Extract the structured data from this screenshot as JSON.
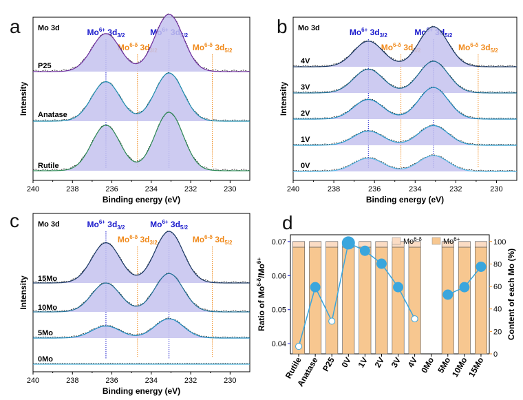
{
  "chart_data": [
    {
      "panel": "a",
      "type": "line",
      "title": "Mo 3d",
      "xlabel": "Binding energy (eV)",
      "ylabel": "Intensity",
      "xlim": [
        240,
        229
      ],
      "xticks": [
        240,
        238,
        236,
        234,
        232,
        230
      ],
      "peak_labels": [
        {
          "text": "Mo6+ 3d3/2",
          "base": "Mo",
          "sup": "6+",
          "mid": " 3d",
          "sub": "3/2",
          "x": 236.3,
          "color": "#1a1acc"
        },
        {
          "text": "Mo6+ 3d5/2",
          "base": "Mo",
          "sup": "6+",
          "mid": " 3d",
          "sub": "5/2",
          "x": 233.1,
          "color": "#1a1acc"
        },
        {
          "text": "Mo6-δ 3d3/2",
          "base": "Mo",
          "sup": "6-δ",
          "mid": " 3d",
          "sub": "3/2",
          "x": 234.7,
          "color": "#f08a1c"
        },
        {
          "text": "Mo6-δ 3d5/2",
          "base": "Mo",
          "sup": "6-δ",
          "mid": " 3d",
          "sub": "5/2",
          "x": 230.9,
          "color": "#f08a1c"
        }
      ],
      "series": [
        {
          "name": "P25",
          "h1": 0.65,
          "h2": 0.98,
          "color": "#7030a0"
        },
        {
          "name": "Anatase",
          "h1": 0.82,
          "h2": 1.0,
          "color": "#1e8fb0"
        },
        {
          "name": "Rutile",
          "h1": 0.78,
          "h2": 1.0,
          "color": "#2e8b57"
        }
      ]
    },
    {
      "panel": "b",
      "type": "line",
      "title": "Mo 3d",
      "xlabel": "Binding energy (eV)",
      "ylabel": "Intensity",
      "xlim": [
        240,
        229
      ],
      "xticks": [
        240,
        238,
        236,
        234,
        232,
        230
      ],
      "peak_labels": [
        {
          "text": "Mo6+ 3d3/2",
          "base": "Mo",
          "sup": "6+",
          "mid": " 3d",
          "sub": "3/2",
          "x": 236.3,
          "color": "#1a1acc"
        },
        {
          "text": "Mo6+ 3d5/2",
          "base": "Mo",
          "sup": "6+",
          "mid": " 3d",
          "sub": "5/2",
          "x": 233.1,
          "color": "#1a1acc"
        },
        {
          "text": "Mo6-δ 3d3/2",
          "base": "Mo",
          "sup": "6-δ",
          "mid": " 3d",
          "sub": "3/2",
          "x": 234.7,
          "color": "#f08a1c"
        },
        {
          "text": "Mo6-δ 3d5/2",
          "base": "Mo",
          "sup": "6-δ",
          "mid": " 3d",
          "sub": "5/2",
          "x": 230.9,
          "color": "#f08a1c"
        }
      ],
      "series": [
        {
          "name": "4V",
          "h1": 0.62,
          "h2": 0.97,
          "color": "#1c3a66"
        },
        {
          "name": "3V",
          "h1": 0.75,
          "h2": 1.0,
          "color": "#1e6f95"
        },
        {
          "name": "2V",
          "h1": 0.62,
          "h2": 1.0,
          "color": "#1c8cc0"
        },
        {
          "name": "1V",
          "h1": 0.45,
          "h2": 0.62,
          "color": "#2c9fd0"
        },
        {
          "name": "0V",
          "h1": 0.42,
          "h2": 0.5,
          "color": "#55b8e6"
        }
      ]
    },
    {
      "panel": "c",
      "type": "line",
      "title": "Mo 3d",
      "xlabel": "Binding energy (eV)",
      "ylabel": "Intensity",
      "xlim": [
        240,
        229
      ],
      "xticks": [
        240,
        238,
        236,
        234,
        232,
        230
      ],
      "peak_labels": [
        {
          "text": "Mo6+ 3d3/2",
          "base": "Mo",
          "sup": "6+",
          "mid": " 3d",
          "sub": "3/2",
          "x": 236.3,
          "color": "#1a1acc"
        },
        {
          "text": "Mo6+ 3d5/2",
          "base": "Mo",
          "sup": "6+",
          "mid": " 3d",
          "sub": "5/2",
          "x": 233.1,
          "color": "#1a1acc"
        },
        {
          "text": "Mo6-δ 3d3/2",
          "base": "Mo",
          "sup": "6-δ",
          "mid": " 3d",
          "sub": "3/2",
          "x": 234.7,
          "color": "#f08a1c"
        },
        {
          "text": "Mo6-δ 3d5/2",
          "base": "Mo",
          "sup": "6-δ",
          "mid": " 3d",
          "sub": "5/2",
          "x": 230.9,
          "color": "#f08a1c"
        }
      ],
      "series": [
        {
          "name": "15Mo",
          "h1": 0.78,
          "h2": 1.0,
          "color": "#1c3a66"
        },
        {
          "name": "10Mo",
          "h1": 0.7,
          "h2": 0.93,
          "color": "#1e6f95"
        },
        {
          "name": "5Mo",
          "h1": 0.35,
          "h2": 0.56,
          "color": "#1c8cc0"
        },
        {
          "name": "0Mo",
          "h1": 0.0,
          "h2": 0.0,
          "color": "#4fb3d9"
        }
      ]
    },
    {
      "panel": "d",
      "type": "bar",
      "categories": [
        "Rutile",
        "Anatase",
        "P25",
        "0V",
        "1V",
        "2V",
        "3V",
        "4V",
        "0Mo",
        "5Mo",
        "10Mo",
        "15Mo"
      ],
      "ylabel_left": "Ratio of Mo6-δ/Mo6+",
      "ylabel_left_parts": {
        "base": "Ratio of Mo",
        "sup1": "6-δ",
        "mid": "/Mo",
        "sup2": "6+"
      },
      "ylabel_right": "Content of each Mo (%)",
      "ylim_left": [
        0.037,
        0.072
      ],
      "yticks_left": [
        0.04,
        0.05,
        0.06,
        0.07
      ],
      "ylim_right": [
        0,
        106
      ],
      "yticks_right": [
        0,
        20,
        40,
        60,
        80,
        100
      ],
      "legend": [
        {
          "name": "Mo6-δ",
          "base": "Mo",
          "sup": "6-δ",
          "color": "#fbdcc4"
        },
        {
          "name": "Mo6+",
          "base": "Mo",
          "sup": "6+",
          "color": "#f7c790"
        }
      ],
      "bars_mo6plus": [
        95,
        95,
        95,
        95,
        95,
        95,
        95,
        95,
        null,
        95,
        95,
        95
      ],
      "bars_mo6minus": [
        5,
        5,
        5,
        5,
        5,
        5,
        5,
        5,
        null,
        5,
        5,
        5
      ],
      "ratio": [
        0.0392,
        0.0566,
        0.0466,
        0.0696,
        0.0673,
        0.0635,
        0.0566,
        0.0473,
        null,
        0.0544,
        0.0566,
        0.0626
      ],
      "line_color": "#3aa6dd"
    }
  ],
  "panel_letters": [
    "a",
    "b",
    "c",
    "d"
  ]
}
